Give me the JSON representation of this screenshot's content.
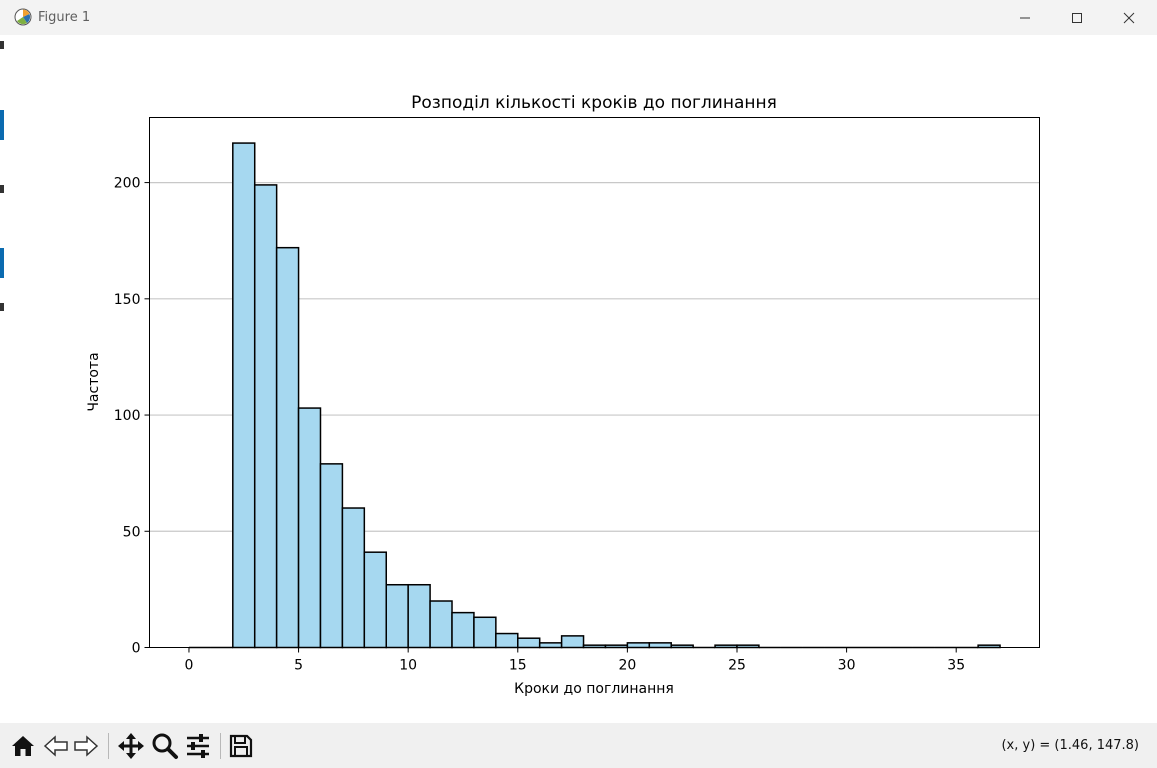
{
  "window": {
    "title": "Figure 1"
  },
  "toolbar": {
    "tools": [
      {
        "name": "home-icon"
      },
      {
        "name": "back-arrow-icon"
      },
      {
        "name": "forward-arrow-icon"
      },
      {
        "name": "pan-icon"
      },
      {
        "name": "zoom-icon"
      },
      {
        "name": "configure-subplots-icon"
      },
      {
        "name": "save-icon"
      }
    ],
    "coords": "(x, y) = (1.46, 147.8)"
  },
  "chart_data": {
    "type": "bar",
    "title": "Розподіл кількості кроків до поглинання",
    "xlabel": "Кроки до поглинання",
    "ylabel": "Частота",
    "xlim": [
      -1.8,
      38.8
    ],
    "ylim": [
      0,
      228
    ],
    "xticks": [
      0,
      5,
      10,
      15,
      20,
      25,
      30,
      35
    ],
    "yticks": [
      0,
      50,
      100,
      150,
      200
    ],
    "grid": "y",
    "bar_color": "#a6d8f0",
    "edge_color": "#000000",
    "grid_color": "#c8c8c8",
    "bin_edges": [
      0,
      1,
      2,
      3,
      4,
      5,
      6,
      7,
      8,
      9,
      10,
      11,
      12,
      13,
      14,
      15,
      16,
      17,
      18,
      19,
      20,
      21,
      22,
      23,
      24,
      25,
      26,
      27,
      28,
      29,
      30,
      31,
      32,
      33,
      34,
      35,
      36,
      37
    ],
    "values": [
      0,
      0,
      217,
      199,
      172,
      103,
      79,
      60,
      41,
      27,
      27,
      20,
      15,
      13,
      6,
      4,
      2,
      5,
      1,
      1,
      2,
      2,
      1,
      0,
      1,
      1,
      0,
      0,
      0,
      0,
      0,
      0,
      0,
      0,
      0,
      0,
      1
    ]
  }
}
